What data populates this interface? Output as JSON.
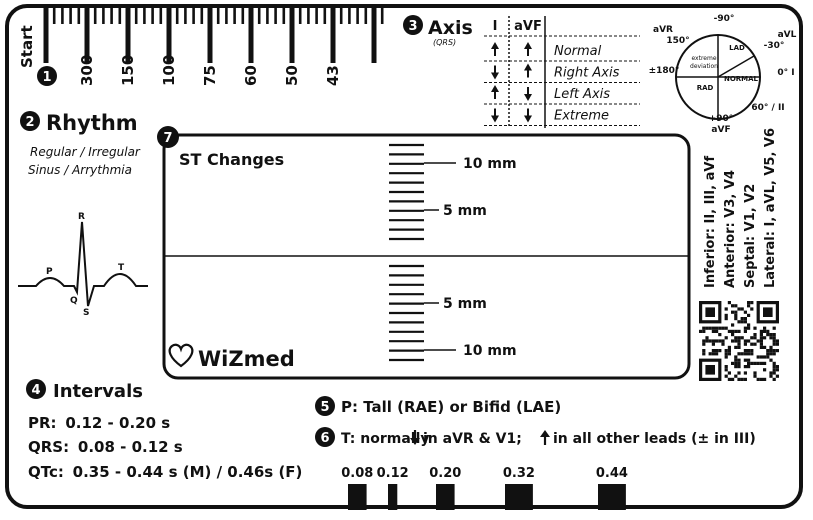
{
  "ruler": {
    "start_label": "Start",
    "rate_labels": [
      "300",
      "150",
      "100",
      "75",
      "60",
      "50",
      "43"
    ]
  },
  "sections": {
    "s1": "1",
    "s2": "2",
    "s3": "3",
    "s4": "4",
    "s5": "5",
    "s6": "6",
    "s7": "7"
  },
  "rhythm": {
    "title": "Rhythm",
    "line1": "Regular / Irregular",
    "line2": "Sinus / Arrythmia",
    "waves": {
      "p": "P",
      "q": "Q",
      "r": "R",
      "s": "S",
      "t": "T"
    }
  },
  "axis": {
    "title": "Axis",
    "subtitle": "(QRS)",
    "col_i": "I",
    "col_avf": "aVF",
    "rows": [
      {
        "label": "Normal",
        "i": "up",
        "avf": "up"
      },
      {
        "label": "Right Axis",
        "i": "down",
        "avf": "up"
      },
      {
        "label": "Left Axis",
        "i": "up",
        "avf": "down"
      },
      {
        "label": "Extreme",
        "i": "down",
        "avf": "down"
      }
    ],
    "wheel": {
      "top": "-90°",
      "avr": "aVR",
      "deg150": "150°",
      "avl": "aVL",
      "deg_minus30": "-30°",
      "right": "0° I",
      "left": "±180°",
      "lower_right": "60° / II",
      "bottom1": "+90°",
      "bottom2": "aVF",
      "q_extreme1": "extreme",
      "q_extreme2": "deviation",
      "q_lad": "LAD",
      "q_rad": "RAD",
      "q_normal": "NORMAL"
    }
  },
  "st": {
    "title": "ST Changes",
    "upper_10": "10 mm",
    "upper_5": "5 mm",
    "lower_5": "5 mm",
    "lower_10": "10 mm",
    "brand": "WiZmed"
  },
  "leads": {
    "inferior": "Inferior: II, III, aVf",
    "anterior": "Anterior: V3, V4",
    "septal": "Septal: V1, V2",
    "lateral": "Lateral: I, aVL, V5, V6"
  },
  "intervals": {
    "title": "Intervals",
    "pr_key": "PR:",
    "pr_val": "0.12 - 0.20 s",
    "qrs_key": "QRS:",
    "qrs_val": "0.08 - 0.12 s",
    "qtc_key": "QTc:",
    "qtc_val": "0.35 - 0.44 s (M) / 0.46s (F)"
  },
  "p_wave": "P: Tall (RAE) or Bifid (LAE)",
  "t_wave": {
    "prefix": "T: normally",
    "middle": "in aVR & V1;",
    "suffix": "in all other leads (± in III)"
  },
  "duration_bars": [
    {
      "label": "0.08",
      "seconds": 0.08
    },
    {
      "label": "0.12",
      "seconds": 0.12
    },
    {
      "label": "0.20",
      "seconds": 0.2
    },
    {
      "label": "0.32",
      "seconds": 0.32
    },
    {
      "label": "0.44",
      "seconds": 0.44
    }
  ]
}
